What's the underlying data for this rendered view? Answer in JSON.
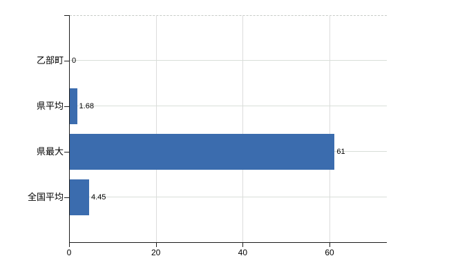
{
  "chart_data": {
    "type": "bar",
    "orientation": "horizontal",
    "title": "",
    "xlabel": "",
    "ylabel": "",
    "categories": [
      "乙部町",
      "県平均",
      "県最大",
      "全国平均"
    ],
    "values": [
      0,
      1.68,
      61,
      4.45
    ],
    "value_labels": [
      "0",
      "1.68",
      "61",
      "4.45"
    ],
    "x_ticks": [
      0,
      20,
      40,
      60
    ],
    "x_tick_labels": [
      "0",
      "20",
      "40",
      "60"
    ],
    "xlim": [
      0,
      73.2
    ],
    "grid": true,
    "legend": "none",
    "colors": {
      "bar": "#3b6cae",
      "gridline_h": "#d8ded8",
      "gridline_v": "#dcdcdc",
      "plot_top_border": "#c6cac6",
      "axis": "#1a1a1a",
      "text": "#000000",
      "background": "#ffffff"
    }
  }
}
